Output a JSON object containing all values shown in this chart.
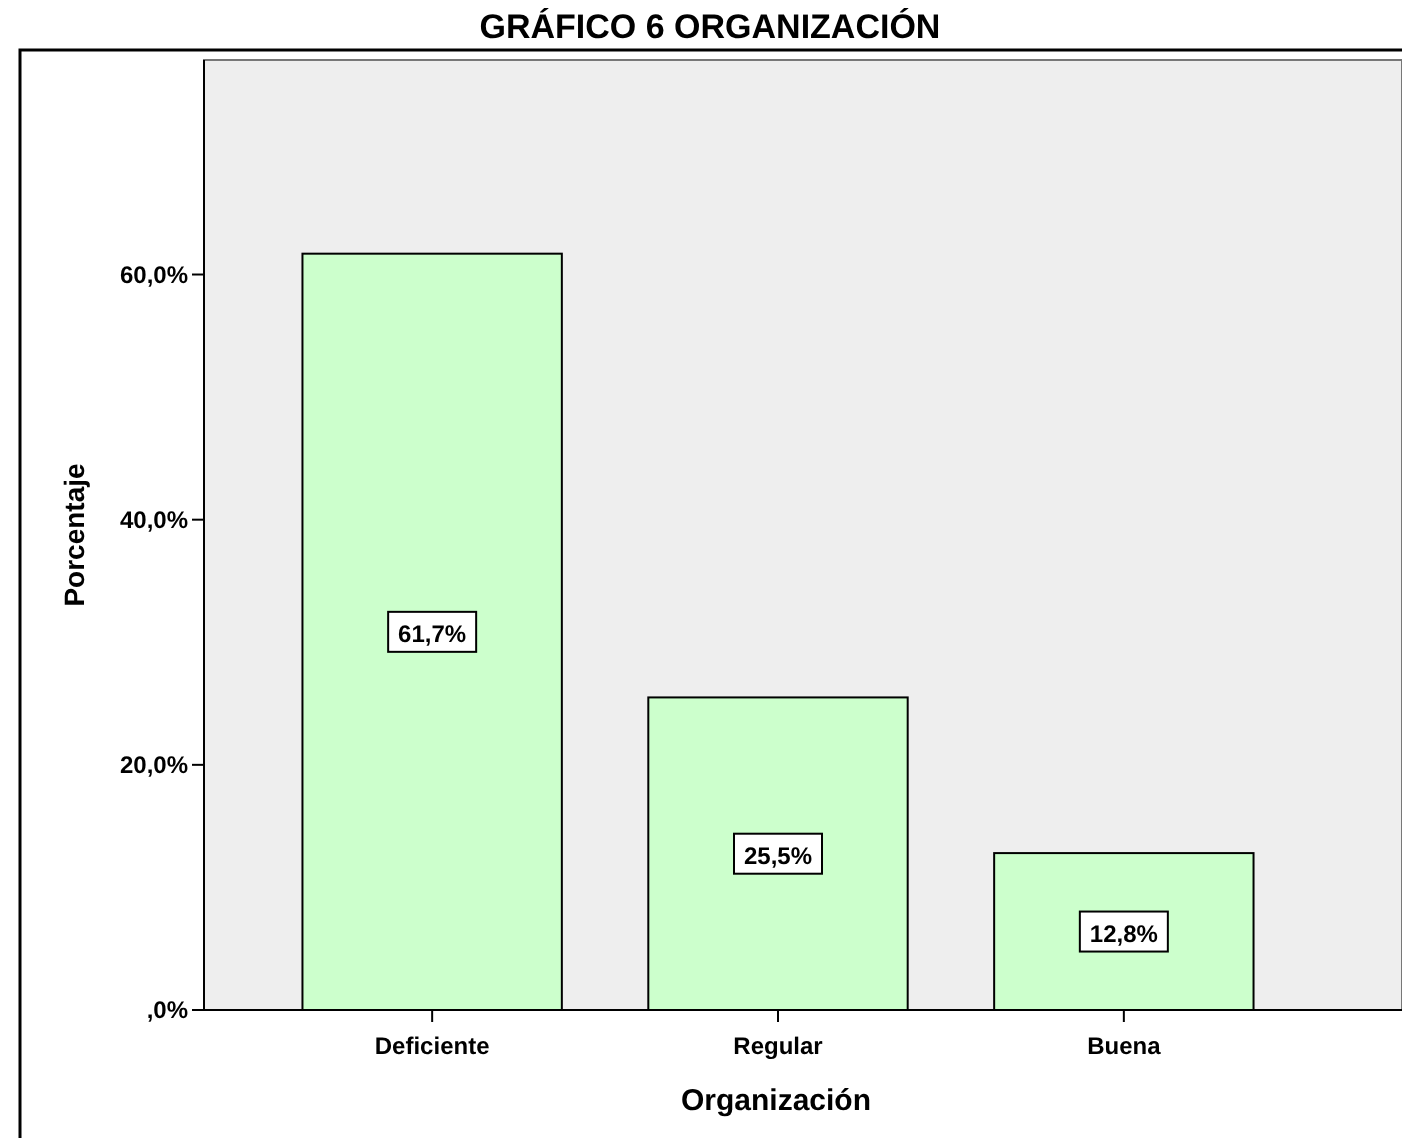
{
  "chart_data": {
    "type": "bar",
    "title": "GRÁFICO 6 ORGANIZACIÓN",
    "xlabel": "Organización",
    "ylabel": "Porcentaje",
    "categories": [
      "Deficiente",
      "Regular",
      "Buena"
    ],
    "values": [
      61.7,
      25.5,
      12.8
    ],
    "value_labels": [
      "61,7%",
      "25,5%",
      "12,8%"
    ],
    "color": "#ccffcc",
    "ylim": [
      0,
      77.5
    ],
    "yticks": [
      {
        "value": 0,
        "label": ",0%"
      },
      {
        "value": 20,
        "label": "20,0%"
      },
      {
        "value": 40,
        "label": "40,0%"
      },
      {
        "value": 60,
        "label": "60,0%"
      }
    ]
  }
}
